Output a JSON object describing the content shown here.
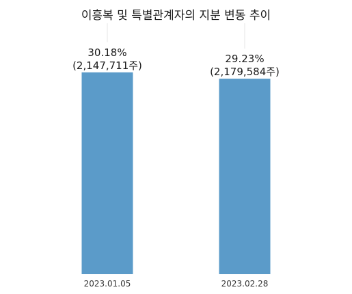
{
  "chart_data": {
    "type": "bar",
    "title": "이흥복 및 특별관계자의 지분 변동 추이",
    "categories": [
      "2023.01.05",
      "2023.02.28"
    ],
    "values": [
      30.18,
      29.23
    ],
    "value_labels": [
      "30.18%",
      "29.23%"
    ],
    "share_labels": [
      "(2,147,711주)",
      "(2,179,584주)"
    ],
    "ylim": [
      0,
      32
    ],
    "grid": false,
    "bar_color": "#5b9bc9"
  }
}
